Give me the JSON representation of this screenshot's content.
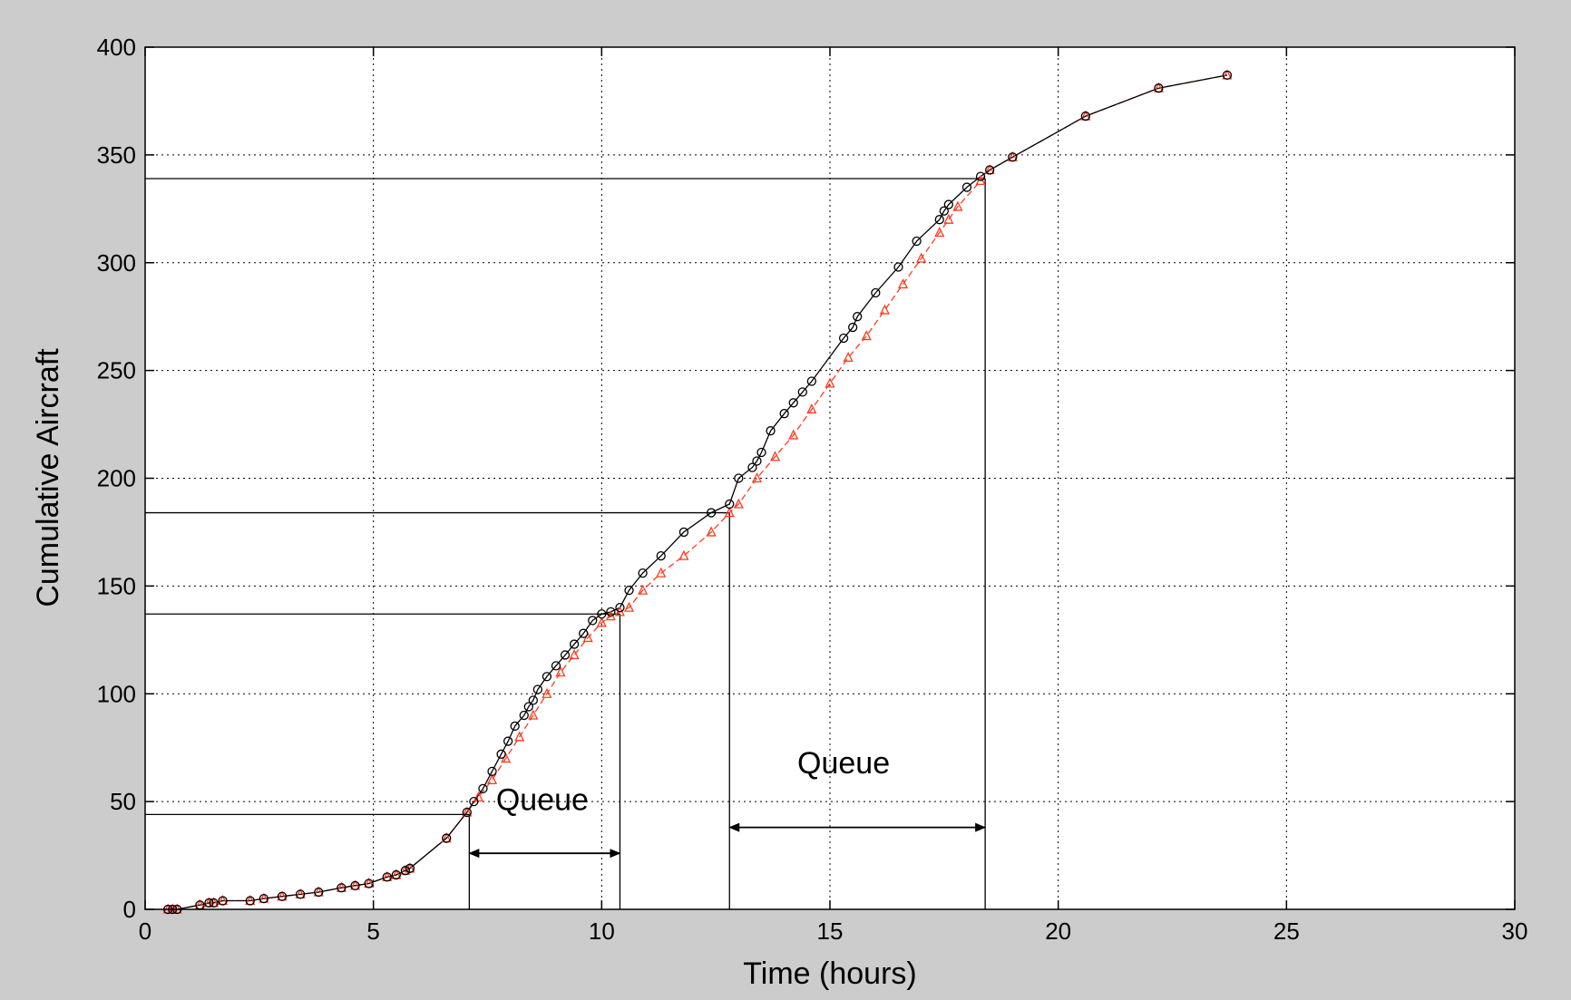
{
  "chart_data": {
    "type": "line",
    "xlabel": "Time (hours)",
    "ylabel": "Cumulative Aircraft",
    "xlim": [
      0,
      30
    ],
    "ylim": [
      0,
      400
    ],
    "xticks": [
      0,
      5,
      10,
      15,
      20,
      25,
      30
    ],
    "yticks": [
      0,
      50,
      100,
      150,
      200,
      250,
      300,
      350,
      400
    ],
    "grid": true,
    "legend": "none",
    "series": [
      {
        "marker": "circle",
        "line_style": "solid",
        "color": "#000000",
        "x": [
          0.5,
          0.6,
          0.7,
          1.2,
          1.4,
          1.5,
          1.7,
          2.3,
          2.6,
          3.0,
          3.4,
          3.8,
          4.3,
          4.6,
          4.9,
          5.3,
          5.5,
          5.7,
          5.8,
          6.6,
          7.05,
          7.2,
          7.4,
          7.6,
          7.8,
          7.95,
          8.1,
          8.3,
          8.4,
          8.5,
          8.6,
          8.8,
          9.0,
          9.2,
          9.4,
          9.6,
          9.8,
          10.0,
          10.2,
          10.4,
          10.6,
          10.9,
          11.3,
          11.8,
          12.4,
          12.8,
          13.0,
          13.3,
          13.4,
          13.5,
          13.7,
          14.0,
          14.2,
          14.4,
          14.6,
          15.3,
          15.5,
          15.6,
          16.0,
          16.5,
          16.9,
          17.4,
          17.5,
          17.6,
          18.0,
          18.3,
          18.5,
          19.0,
          20.6,
          22.2,
          23.7
        ],
        "y": [
          0,
          0,
          0,
          2,
          3,
          3,
          4,
          4,
          5,
          6,
          7,
          8,
          10,
          11,
          12,
          15,
          16,
          18,
          19,
          33,
          45,
          50,
          56,
          64,
          72,
          78,
          85,
          90,
          94,
          97,
          102,
          108,
          113,
          118,
          123,
          128,
          134,
          137,
          138,
          140,
          148,
          156,
          164,
          175,
          184,
          188,
          200,
          205,
          208,
          212,
          222,
          230,
          235,
          240,
          245,
          265,
          270,
          275,
          286,
          298,
          310,
          320,
          324,
          327,
          335,
          340,
          343,
          349,
          368,
          381,
          387
        ]
      },
      {
        "marker": "triangle",
        "line_style": "dashed",
        "color": "#ff3b1f",
        "x": [
          0.5,
          0.6,
          0.7,
          1.2,
          1.4,
          1.5,
          1.7,
          2.3,
          2.6,
          3.0,
          3.4,
          3.8,
          4.3,
          4.6,
          4.9,
          5.3,
          5.5,
          5.7,
          5.8,
          6.6,
          7.05,
          7.3,
          7.6,
          7.9,
          8.2,
          8.5,
          8.8,
          9.1,
          9.4,
          9.7,
          10.0,
          10.2,
          10.4,
          10.6,
          10.9,
          11.3,
          11.8,
          12.4,
          12.8,
          13.0,
          13.4,
          13.8,
          14.2,
          14.6,
          15.0,
          15.4,
          15.8,
          16.2,
          16.6,
          17.0,
          17.4,
          17.6,
          17.8,
          18.3,
          18.5,
          19.0,
          20.6,
          22.2,
          23.7
        ],
        "y": [
          0,
          0,
          0,
          2,
          3,
          3,
          4,
          4,
          5,
          6,
          7,
          8,
          10,
          11,
          12,
          15,
          16,
          18,
          19,
          33,
          45,
          52,
          60,
          70,
          80,
          90,
          100,
          110,
          118,
          126,
          133,
          136,
          138,
          140,
          148,
          156,
          164,
          175,
          184,
          188,
          200,
          210,
          220,
          232,
          244,
          256,
          266,
          278,
          290,
          302,
          314,
          320,
          326,
          338,
          343,
          349,
          368,
          381,
          387
        ]
      }
    ],
    "reference_lines": [
      {
        "y": 44,
        "x": 7.1
      },
      {
        "y": 137,
        "x": 10.4
      },
      {
        "y": 184,
        "x": 12.8
      },
      {
        "y": 339,
        "x": 18.4
      }
    ],
    "annotations": [
      {
        "text": "Queue",
        "x": 8.7,
        "y": 46,
        "arrow_from": 7.1,
        "arrow_to": 10.4,
        "arrow_y": 26
      },
      {
        "text": "Queue",
        "x": 15.3,
        "y": 63,
        "arrow_from": 12.8,
        "arrow_to": 18.4,
        "arrow_y": 38
      }
    ]
  }
}
